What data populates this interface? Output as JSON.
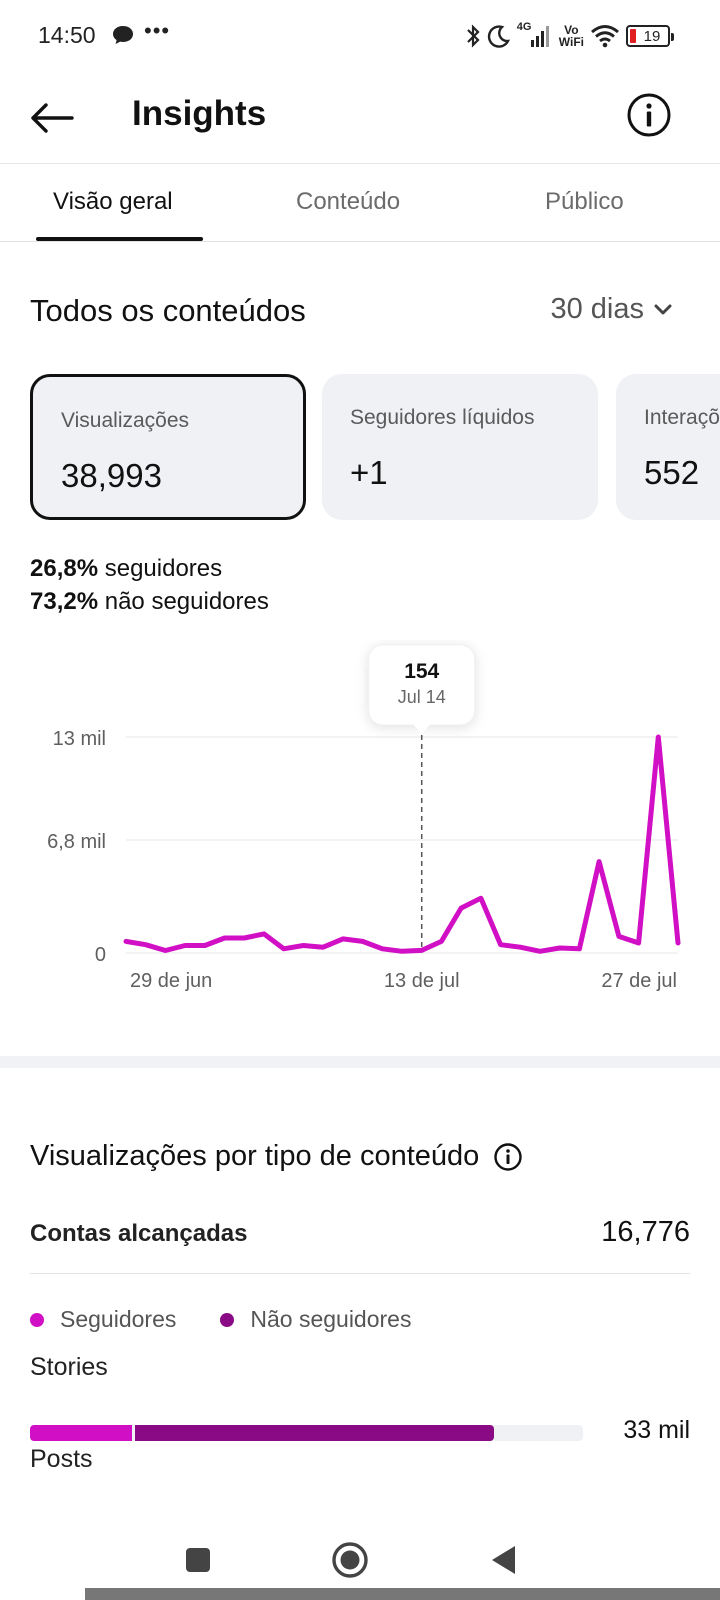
{
  "status_bar": {
    "time": "14:50",
    "more": "•••",
    "network": "4G",
    "vowifi_top": "Vo",
    "vowifi_bottom": "WiFi",
    "battery": "19",
    "icons": [
      "message-bubble-icon",
      "bluetooth-icon",
      "moon-icon",
      "signal-icon",
      "wifi-icon",
      "battery-icon"
    ]
  },
  "header": {
    "title": "Insights",
    "back_icon": "arrow-left-icon",
    "info_icon": "info-circle-icon"
  },
  "tabs": [
    {
      "label": "Visão geral",
      "active": true
    },
    {
      "label": "Conteúdo",
      "active": false
    },
    {
      "label": "Público",
      "active": false
    }
  ],
  "overview": {
    "title": "Todos os conteúdos",
    "period": "30 dias",
    "cards": [
      {
        "label": "Visualizações",
        "value": "38,993",
        "selected": true
      },
      {
        "label": "Seguidores líquidos",
        "value": "+1",
        "selected": false
      },
      {
        "label": "Interações",
        "value": "552",
        "selected": false
      }
    ],
    "followers_pct": "26,8%",
    "followers_text": " seguidores",
    "non_followers_pct": "73,2%",
    "non_followers_text": " não seguidores"
  },
  "chart_data": {
    "type": "line",
    "title": "",
    "xlabel": "",
    "ylabel": "",
    "y_ticks": [
      "0",
      "6,8 mil",
      "13 mil"
    ],
    "y_tick_values": [
      0,
      6800,
      13000
    ],
    "ylim": [
      0,
      13000
    ],
    "x_ticks": [
      "29 de jun",
      "13 de jul",
      "27 de jul"
    ],
    "x_tick_index": [
      1,
      15,
      29
    ],
    "grid": true,
    "series": [
      {
        "color": "#d10fc4",
        "values": [
          700,
          500,
          150,
          450,
          450,
          900,
          900,
          1150,
          250,
          450,
          350,
          850,
          700,
          250,
          100,
          154,
          700,
          2700,
          3300,
          500,
          350,
          100,
          300,
          250,
          5500,
          1000,
          600,
          13000,
          600
        ]
      }
    ],
    "tooltip": {
      "value": "154",
      "date": "Jul 14",
      "index": 15
    }
  },
  "content_types": {
    "title": "Visualizações por tipo de conteúdo",
    "info_icon": "info-circle-icon",
    "reached_label": "Contas alcançadas",
    "reached_value": "16,776",
    "legend": [
      {
        "label": "Seguidores",
        "color": "#d10fc4"
      },
      {
        "label": "Não seguidores",
        "color": "#8a0a86"
      }
    ],
    "rows": [
      {
        "label": "Stories",
        "value": "33 mil",
        "followers_fraction": 0.185,
        "non_followers_fraction": 0.65
      },
      {
        "label": "Posts"
      }
    ]
  },
  "navbar": {
    "icons": [
      "recent-apps-icon",
      "home-icon",
      "back-triangle-icon"
    ]
  }
}
